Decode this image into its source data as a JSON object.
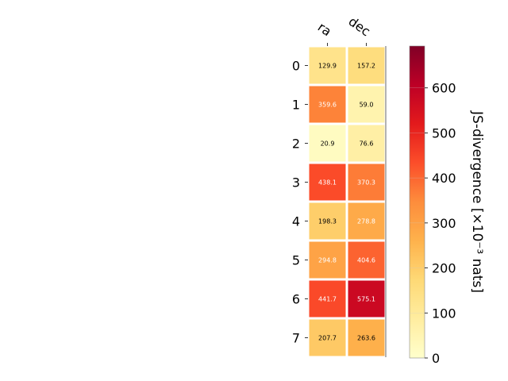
{
  "chart_data": {
    "type": "heatmap",
    "title": "",
    "x_categories": [
      "ra",
      "dec"
    ],
    "y_categories": [
      "0",
      "1",
      "2",
      "3",
      "4",
      "5",
      "6",
      "7"
    ],
    "values": [
      [
        129.9,
        157.2
      ],
      [
        359.6,
        59.0
      ],
      [
        20.9,
        76.6
      ],
      [
        438.1,
        370.3
      ],
      [
        198.3,
        278.8
      ],
      [
        294.8,
        404.6
      ],
      [
        441.7,
        575.1
      ],
      [
        207.7,
        263.6
      ]
    ],
    "value_labels": [
      [
        "129.9",
        "157.2"
      ],
      [
        "359.6",
        "59.0"
      ],
      [
        "20.9",
        "76.6"
      ],
      [
        "438.1",
        "370.3"
      ],
      [
        "198.3",
        "278.8"
      ],
      [
        "294.8",
        "404.6"
      ],
      [
        "441.7",
        "575.1"
      ],
      [
        "207.7",
        "263.6"
      ]
    ],
    "colormap": "YlOrRd",
    "colorbar": {
      "label": "JS-divergence [×10⁻³ nats]",
      "range": [
        0,
        693
      ],
      "ticks": [
        0,
        100,
        200,
        300,
        400,
        500,
        600
      ],
      "tick_labels": [
        "0",
        "100",
        "200",
        "300",
        "400",
        "500",
        "600"
      ]
    },
    "grid": false,
    "legend": "none"
  }
}
